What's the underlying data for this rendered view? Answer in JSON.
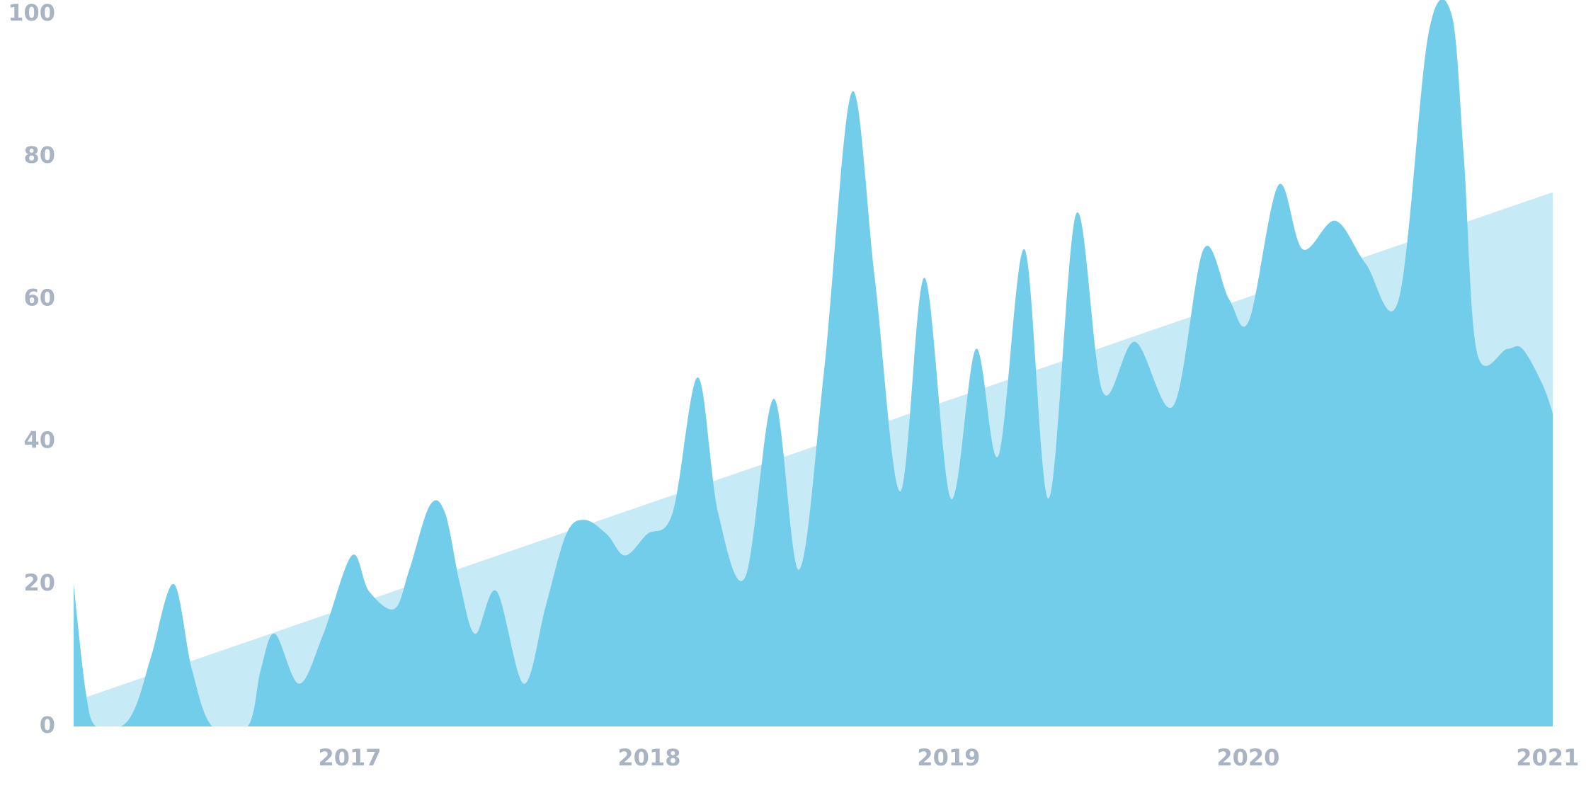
{
  "chart_data": {
    "type": "area",
    "xlim": [
      2016.078,
      2021.017
    ],
    "xticks": [
      2017,
      2018,
      2019,
      2020,
      2021
    ],
    "ylim": [
      0,
      100
    ],
    "yticks": [
      0,
      20,
      40,
      60,
      80,
      100
    ],
    "series": [
      {
        "color": "#c6eaf6",
        "x": [
          2016.078,
          2021.017
        ],
        "values": [
          3.5,
          75
        ]
      },
      {
        "color": "#72cdea",
        "x": [
          2016.078,
          2016.118,
          2016.152,
          2016.236,
          2016.287,
          2016.338,
          2016.412,
          2016.473,
          2016.541,
          2016.659,
          2016.703,
          2016.75,
          2016.831,
          2016.912,
          2017.007,
          2017.064,
          2017.149,
          2017.199,
          2017.267,
          2017.318,
          2017.368,
          2017.419,
          2017.49,
          2017.581,
          2017.655,
          2017.723,
          2017.784,
          2017.858,
          2017.919,
          2017.993,
          2018.078,
          2018.162,
          2018.23,
          2018.321,
          2018.416,
          2018.5,
          2018.584,
          2018.676,
          2018.753,
          2018.838,
          2018.919,
          2019.007,
          2019.091,
          2019.166,
          2019.253,
          2019.334,
          2019.426,
          2019.514,
          2019.622,
          2019.75,
          2019.851,
          2019.936,
          2020.003,
          2020.101,
          2020.182,
          2020.291,
          2020.392,
          2020.503,
          2020.601,
          2020.679,
          2020.72,
          2020.764,
          2020.865,
          2020.916,
          2020.983,
          2021.017
        ],
        "values": [
          20,
          5,
          0,
          0,
          3,
          10,
          20,
          8,
          0,
          0,
          8,
          13,
          6,
          13,
          24,
          19,
          16.5,
          22,
          31,
          30,
          20,
          13,
          19,
          6,
          17,
          27,
          29,
          27,
          24,
          27,
          30,
          49,
          30,
          21,
          46,
          22,
          50,
          89,
          63,
          33,
          63,
          32,
          53,
          38,
          67,
          32,
          72,
          47,
          54,
          45,
          67,
          60,
          57,
          76,
          67,
          71,
          65,
          60,
          97,
          100,
          80,
          52.5,
          53,
          53,
          48,
          44
        ]
      }
    ]
  }
}
